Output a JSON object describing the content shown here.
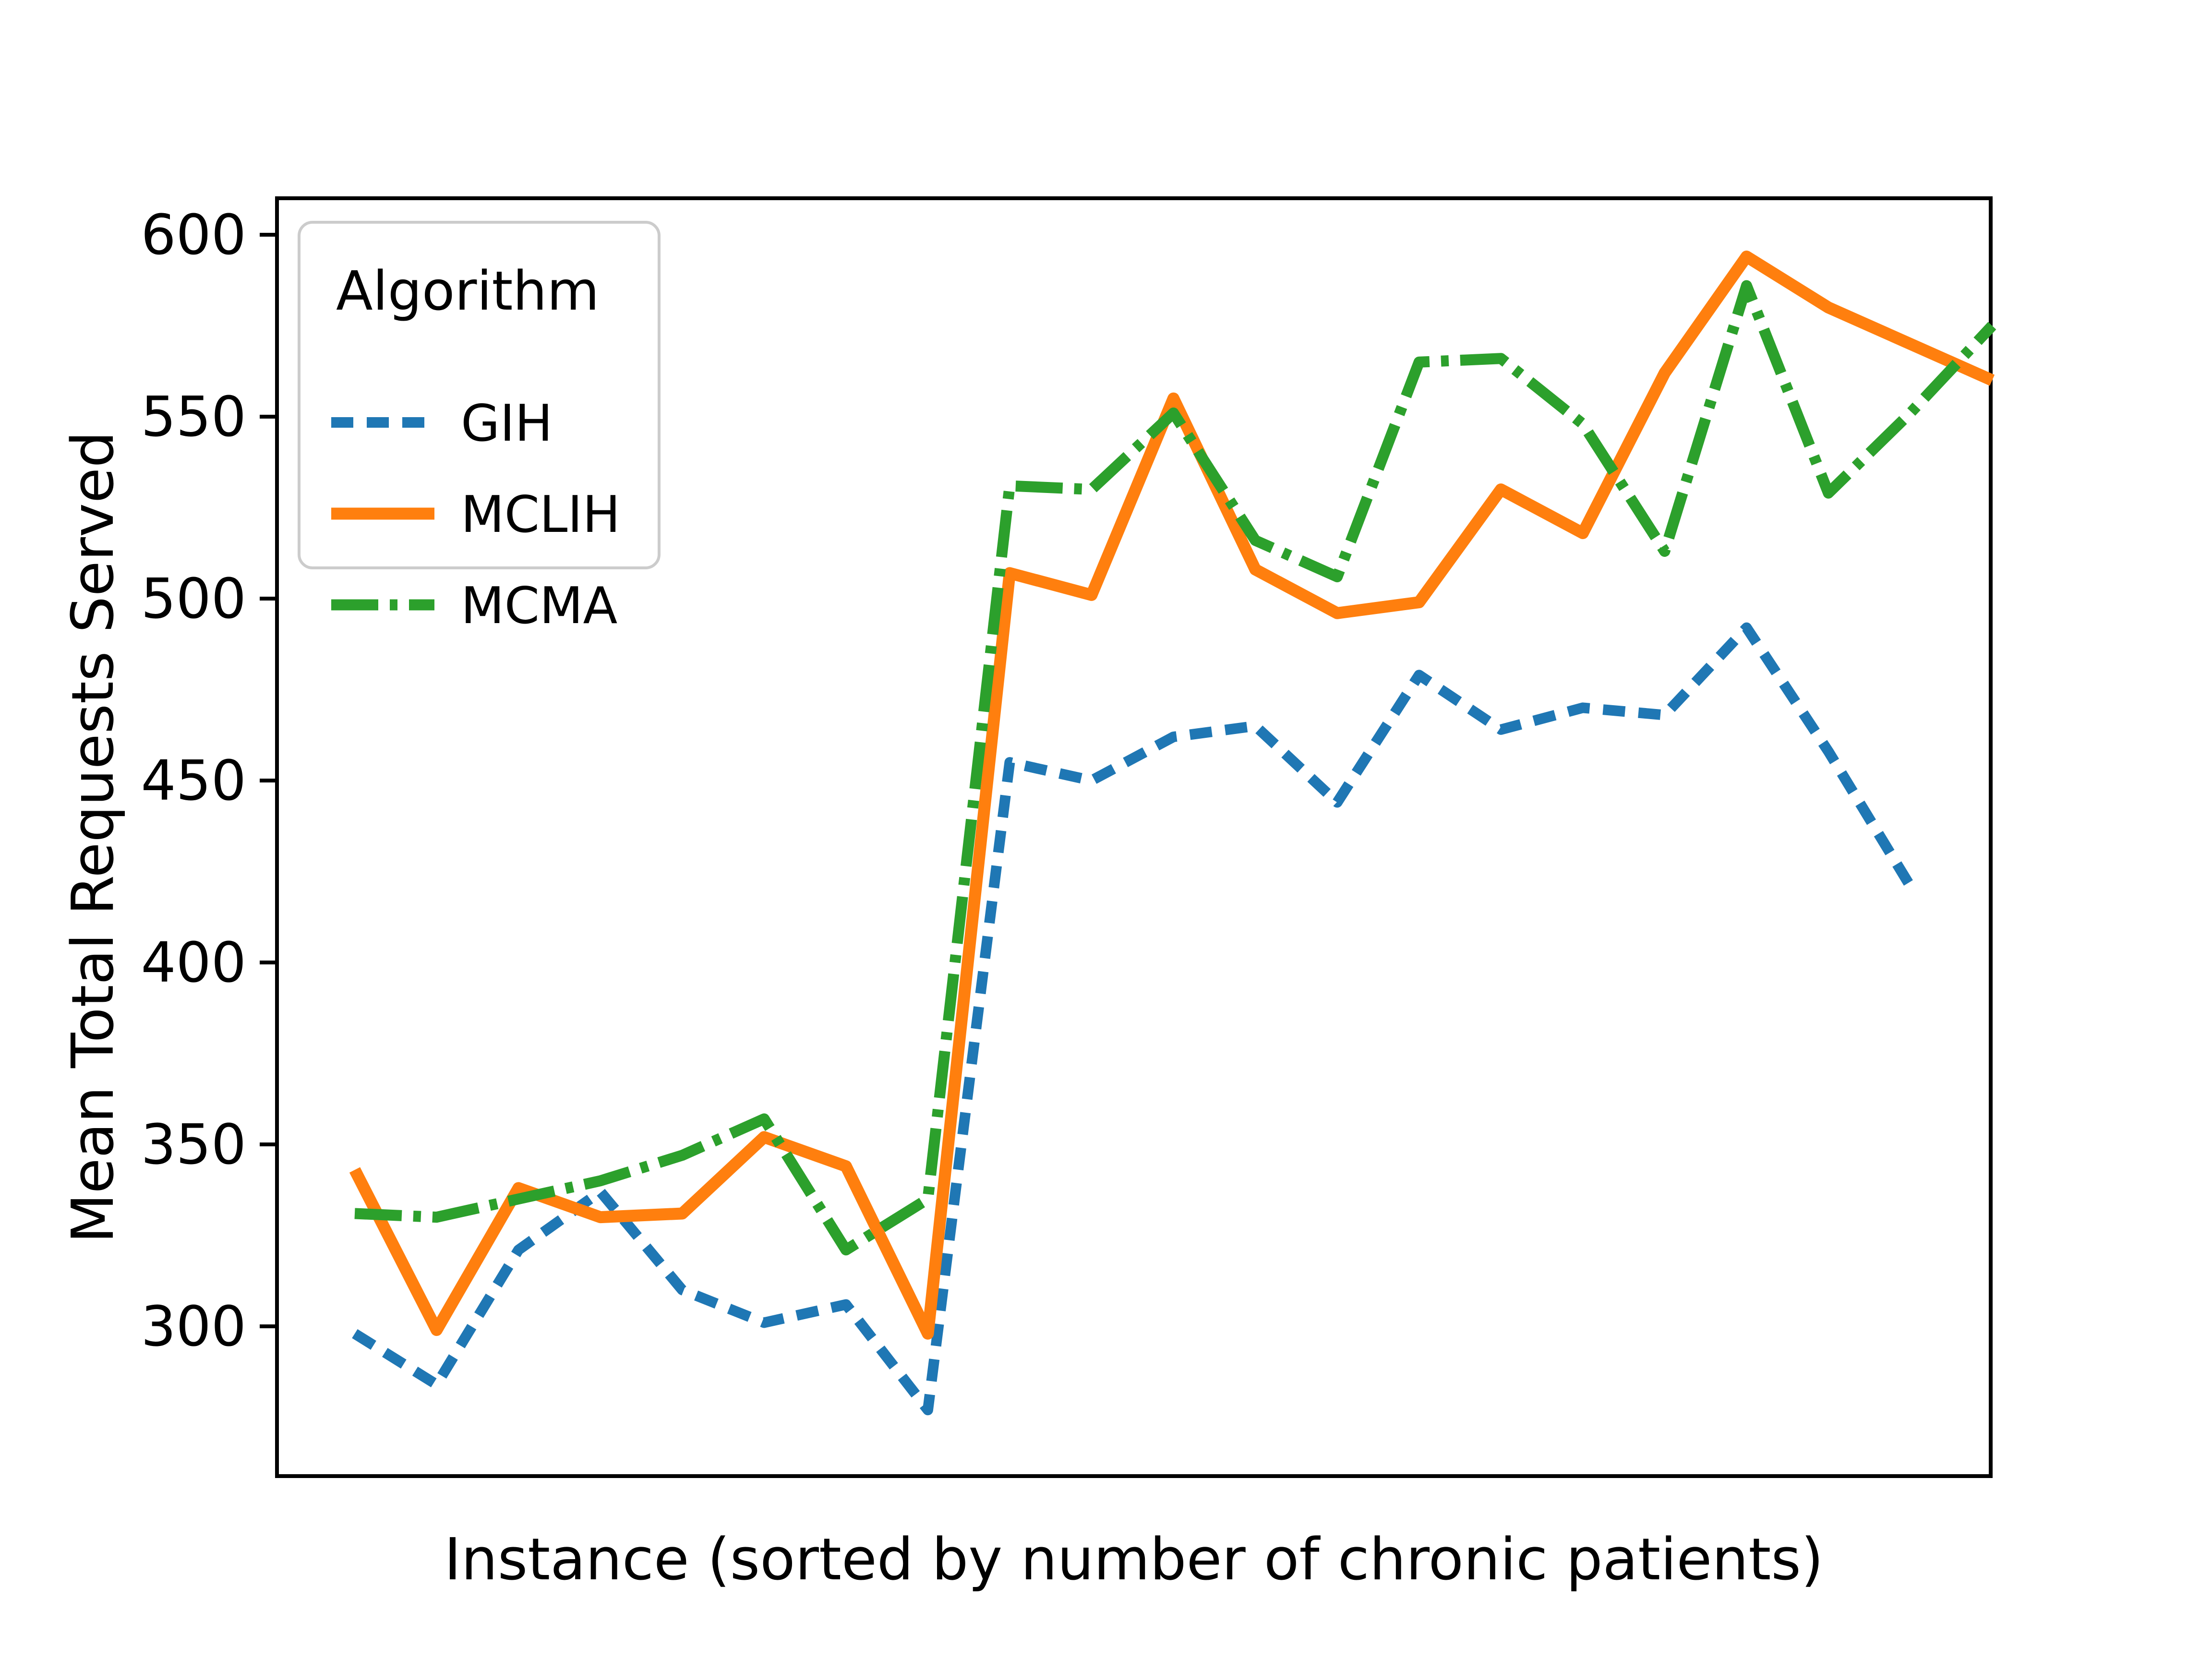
{
  "axes": {
    "x_label": "Instance (sorted by number of chronic patients)",
    "y_label": "Mean Total Requests Served",
    "y_ticks": [
      300,
      350,
      400,
      450,
      500,
      550,
      600
    ]
  },
  "legend": {
    "title": "Algorithm",
    "items": [
      {
        "label": "GIH",
        "color": "#1f77b4",
        "style": "dashed"
      },
      {
        "label": "MCLIH",
        "color": "#ff7f0e",
        "style": "solid"
      },
      {
        "label": "MCMA",
        "color": "#2ca02c",
        "style": "dashdot"
      }
    ]
  },
  "chart_data": {
    "type": "line",
    "title": "",
    "xlabel": "Instance (sorted by number of chronic patients)",
    "ylabel": "Mean Total Requests Served",
    "x": [
      0,
      1,
      2,
      3,
      4,
      5,
      6,
      7,
      8,
      9,
      10,
      11,
      12,
      13,
      14,
      15,
      16,
      17,
      18,
      19,
      20
    ],
    "x_tick_labels_shown": false,
    "ylim": [
      259,
      610
    ],
    "grid": false,
    "legend_position": "upper-left",
    "series": [
      {
        "name": "GIH",
        "color": "#1f77b4",
        "linestyle": "dashed",
        "values": [
          298,
          284,
          321,
          337,
          310,
          301,
          306,
          277,
          455,
          450,
          462,
          465,
          444,
          479,
          464,
          470,
          468,
          492,
          458,
          421,
          null
        ]
      },
      {
        "name": "MCLIH",
        "color": "#ff7f0e",
        "linestyle": "solid",
        "values": [
          343,
          299,
          338,
          330,
          331,
          352,
          344,
          298,
          507,
          501,
          555,
          508,
          496,
          499,
          530,
          518,
          562,
          594,
          580,
          570,
          560
        ]
      },
      {
        "name": "MCMA",
        "color": "#2ca02c",
        "linestyle": "dashdot",
        "values": [
          331,
          330,
          335,
          340,
          347,
          357,
          321,
          335,
          531,
          530,
          551,
          516,
          506,
          565,
          566,
          548,
          513,
          586,
          529,
          551,
          575
        ]
      }
    ]
  }
}
